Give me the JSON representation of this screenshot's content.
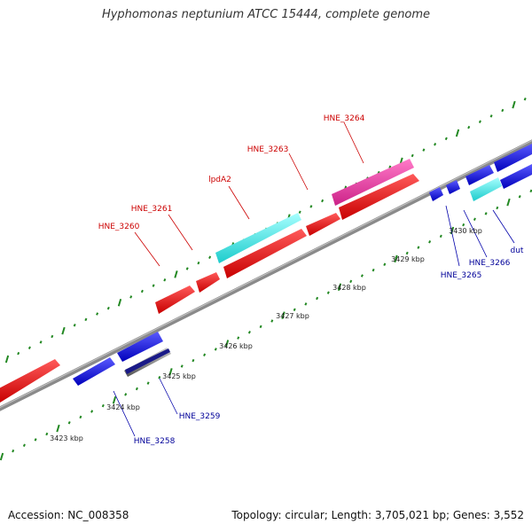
{
  "title": "Hyphomonas neptunium ATCC 15444, complete genome",
  "footer": {
    "accession": "Accession: NC_008358",
    "summary": "Topology: circular; Length: 3,705,021 bp; Genes: 3,552"
  },
  "colors": {
    "forward": "#ee0000",
    "reverse": "#1111dd",
    "rna_forward": "#22e6e6",
    "rna_reverse": "#33ccee",
    "misc": "#ee3399",
    "backbone": "#888888",
    "tick": "#228822",
    "forward_label": "#cc0000",
    "reverse_label": "#000099"
  },
  "kbp_labels": [
    "3423 kbp",
    "3424 kbp",
    "3425 kbp",
    "3426 kbp",
    "3427 kbp",
    "3428 kbp",
    "3429 kbp",
    "3430 kbp"
  ],
  "forward_labels": [
    "HNE_3260",
    "HNE_3261",
    "lpdA2",
    "HNE_3263",
    "HNE_3264"
  ],
  "reverse_labels": [
    "HNE_3258",
    "HNE_3259",
    "HNE_3265",
    "HNE_3266",
    "dut"
  ]
}
